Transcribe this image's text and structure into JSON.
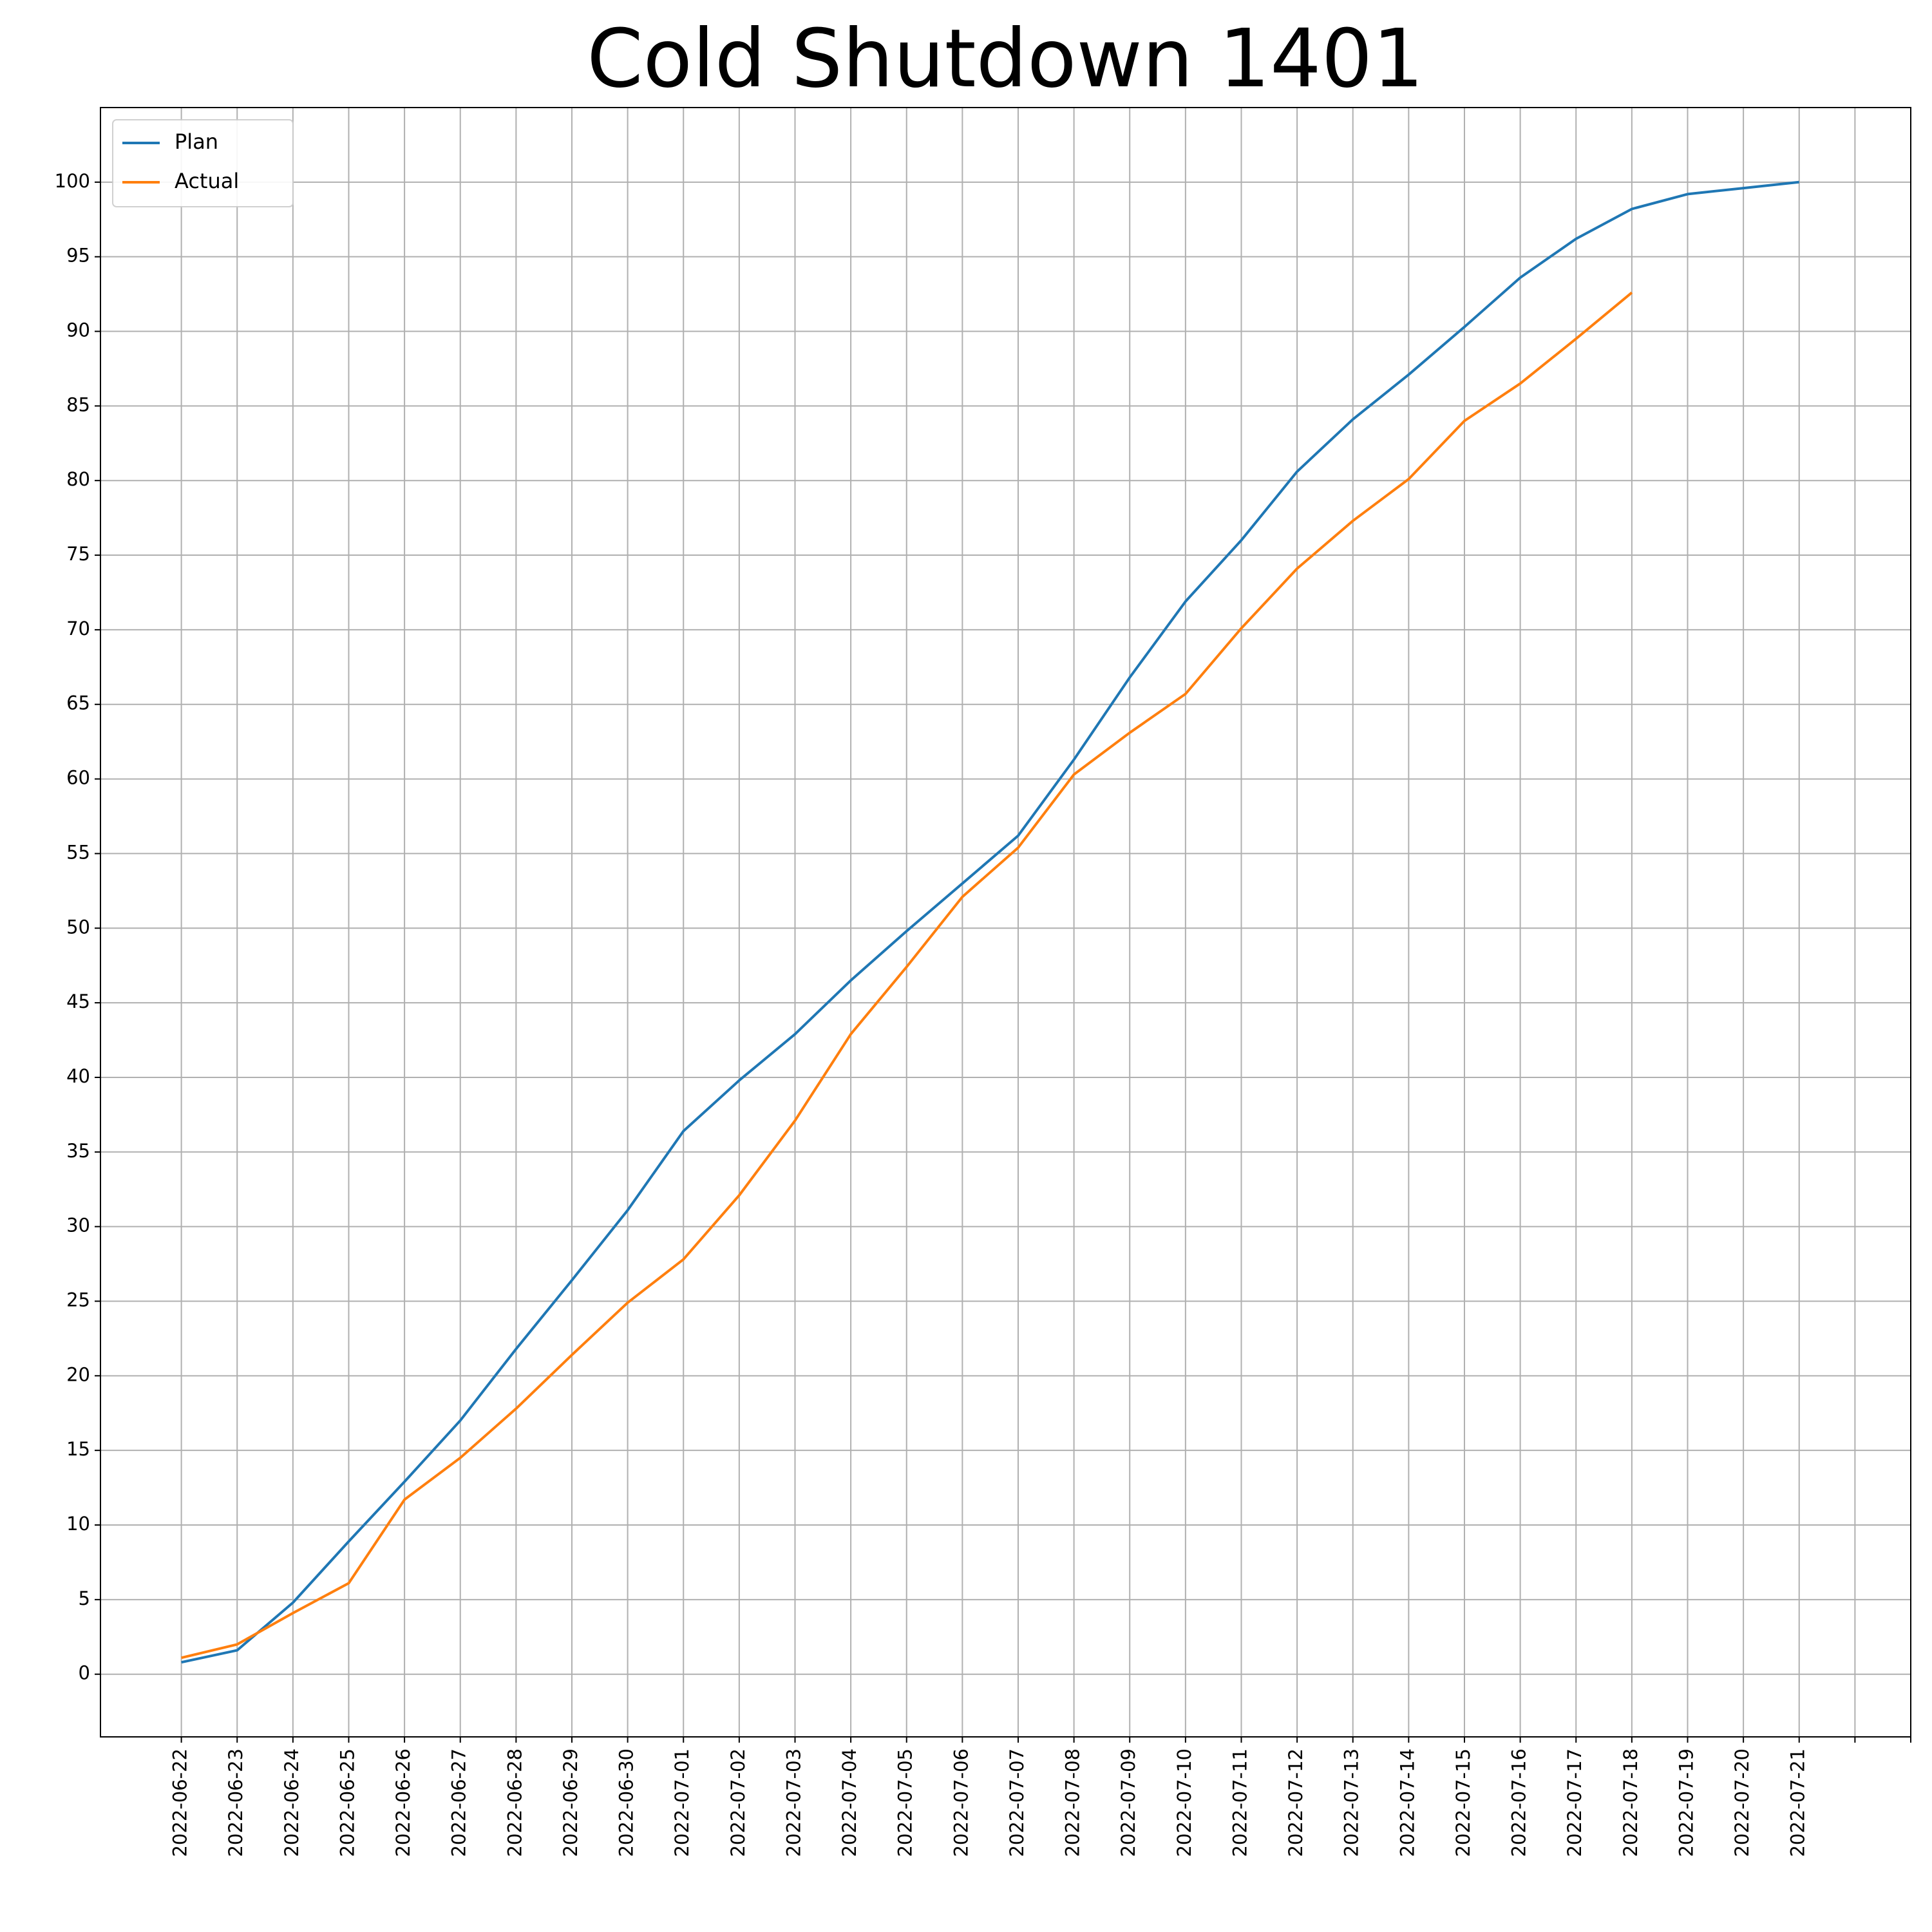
{
  "chart_data": {
    "type": "line",
    "title": "Cold Shutdown 1401",
    "categories": [
      "2022-06-22",
      "2022-06-23",
      "2022-06-24",
      "2022-06-25",
      "2022-06-26",
      "2022-06-27",
      "2022-06-28",
      "2022-06-29",
      "2022-06-30",
      "2022-07-01",
      "2022-07-02",
      "2022-07-03",
      "2022-07-04",
      "2022-07-05",
      "2022-07-06",
      "2022-07-07",
      "2022-07-08",
      "2022-07-09",
      "2022-07-10",
      "2022-07-11",
      "2022-07-12",
      "2022-07-13",
      "2022-07-14",
      "2022-07-15",
      "2022-07-16",
      "2022-07-17",
      "2022-07-18",
      "2022-07-19",
      "2022-07-20",
      "2022-07-21",
      null,
      null
    ],
    "series": [
      {
        "name": "Plan",
        "color": "#1f77b4",
        "values": [
          0.8,
          1.6,
          4.8,
          8.9,
          12.9,
          17.0,
          21.8,
          26.4,
          31.1,
          36.4,
          39.8,
          42.9,
          46.5,
          49.8,
          53.0,
          56.2,
          61.3,
          66.8,
          71.9,
          76.0,
          80.6,
          84.1,
          87.1,
          90.3,
          93.6,
          96.2,
          98.2,
          99.2,
          99.6,
          100.0,
          null,
          null
        ]
      },
      {
        "name": "Actual",
        "color": "#ff7f0e",
        "values": [
          1.1,
          2.0,
          4.1,
          6.1,
          11.7,
          14.5,
          17.8,
          21.4,
          24.9,
          27.8,
          32.1,
          37.1,
          42.9,
          47.4,
          52.1,
          55.4,
          60.3,
          63.1,
          65.7,
          70.1,
          74.1,
          77.3,
          80.1,
          84.0,
          86.5,
          89.5,
          92.6,
          null,
          null,
          null,
          null,
          null
        ]
      }
    ],
    "ylim": [
      -4.2,
      105
    ],
    "yticks": [
      0,
      5,
      10,
      15,
      20,
      25,
      30,
      35,
      40,
      45,
      50,
      55,
      60,
      65,
      70,
      75,
      80,
      85,
      90,
      95,
      100
    ],
    "grid": true,
    "legend": "upper left"
  }
}
